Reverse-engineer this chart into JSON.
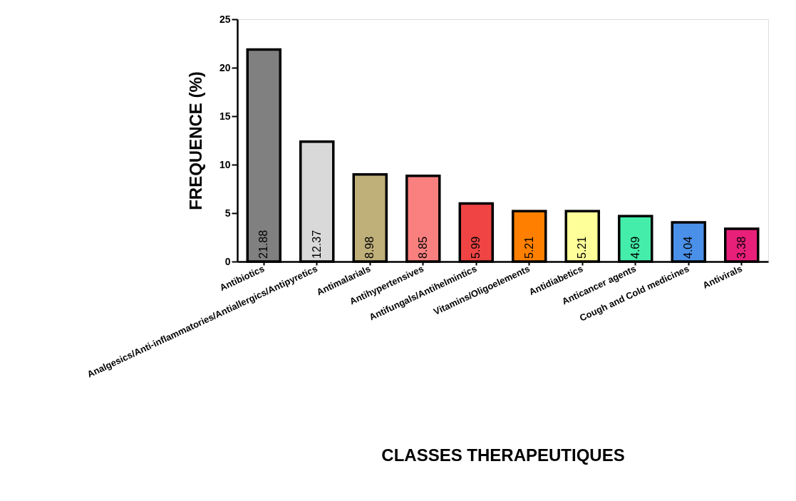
{
  "chart_data": {
    "type": "bar",
    "categories": [
      "Antibiotics",
      "Analgesics/Anti-inflammatories/Antiallergics/Antipyretics",
      "Antimalarials",
      "Antihypertensives",
      "Antifungals/Antihelmintics",
      "Vitamins/Oligoelements",
      "Antidiabetics",
      "Anticancer agents",
      "Cough and Cold medicines",
      "Antivirals"
    ],
    "values": [
      21.88,
      12.37,
      8.98,
      8.85,
      5.99,
      5.21,
      5.21,
      4.69,
      4.04,
      3.38
    ],
    "colors": [
      "#808080",
      "#d9d9d9",
      "#bfb07a",
      "#fa8080",
      "#f04444",
      "#ff8000",
      "#ffff99",
      "#44eeaa",
      "#4a90e8",
      "#e8207a"
    ],
    "xlabel": "CLASSES THERAPEUTIQUES",
    "ylabel": "FREQUENCE (%)",
    "ylim": [
      0,
      25
    ],
    "yticks": [
      0,
      5,
      10,
      15,
      20,
      25
    ],
    "data_labels": true
  }
}
